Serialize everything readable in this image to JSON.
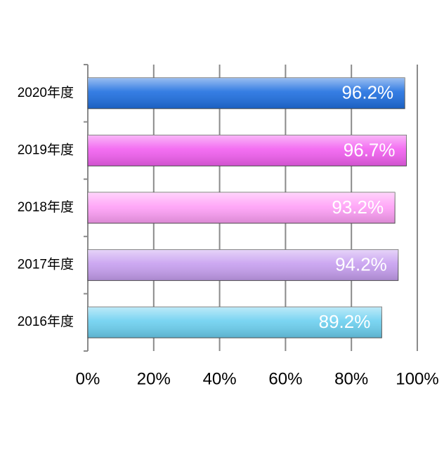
{
  "chart_data": {
    "type": "barh",
    "categories": [
      "2020年度",
      "2019年度",
      "2018年度",
      "2017年度",
      "2016年度"
    ],
    "values": [
      96.2,
      96.7,
      93.2,
      94.2,
      89.2
    ],
    "value_labels": [
      "96.2%",
      "96.7%",
      "93.2%",
      "94.2%",
      "89.2%"
    ],
    "colors": [
      "#1f6fe0",
      "#f25ff0",
      "#ff9ff7",
      "#c79ff0",
      "#6cd0f0"
    ],
    "xlim": [
      0,
      100
    ],
    "xticks": [
      {
        "value": 0,
        "label": "0%"
      },
      {
        "value": 20,
        "label": "20%"
      },
      {
        "value": 40,
        "label": "40%"
      },
      {
        "value": 60,
        "label": "60%"
      },
      {
        "value": 80,
        "label": "80%"
      },
      {
        "value": 100,
        "label": "100%"
      }
    ],
    "grid": true
  }
}
